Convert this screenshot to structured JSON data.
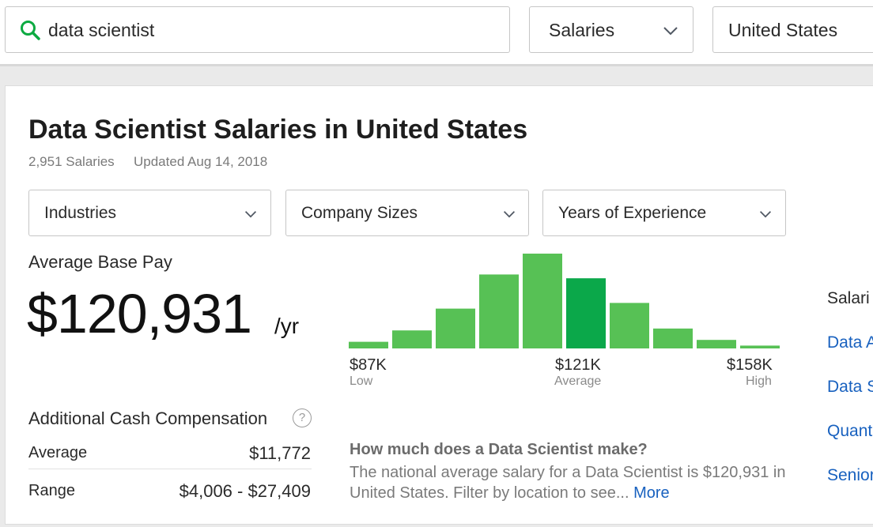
{
  "search": {
    "query": "data scientist",
    "category": "Salaries",
    "location": "United States"
  },
  "header": {
    "title": "Data Scientist Salaries in United States",
    "salary_count": "2,951 Salaries",
    "updated": "Updated Aug 14, 2018"
  },
  "filters": [
    {
      "label": "Industries"
    },
    {
      "label": "Company Sizes"
    },
    {
      "label": "Years of Experience"
    }
  ],
  "average_base_pay": {
    "label": "Average Base Pay",
    "value": "$120,931",
    "unit": "/yr"
  },
  "additional_cash": {
    "label": "Additional Cash Compensation",
    "help": "?",
    "rows": [
      {
        "label": "Average",
        "value": "$11,772"
      },
      {
        "label": "Range",
        "value": "$4,006 - $27,409"
      }
    ]
  },
  "chart_data": {
    "type": "bar",
    "title": "",
    "xlabel": "",
    "ylabel": "",
    "values": [
      0.07,
      0.19,
      0.42,
      0.78,
      1.0,
      0.74,
      0.48,
      0.21,
      0.09,
      0.03
    ],
    "highlight_index": 5,
    "axis_labels": [
      {
        "value": "$87K",
        "sub": "Low"
      },
      {
        "value": "$121K",
        "sub": "Average"
      },
      {
        "value": "$158K",
        "sub": "High"
      }
    ],
    "colors": {
      "bar": "#57c155",
      "highlight": "#0ba84a"
    }
  },
  "question": {
    "title": "How much does a Data Scientist make?",
    "body": "The national average salary for a Data Scientist is $120,931 in United States. Filter by location to see...",
    "more": "More"
  },
  "related": {
    "title": "Salari",
    "links": [
      "Data A",
      "Data S",
      "Quant",
      "Senior"
    ]
  }
}
